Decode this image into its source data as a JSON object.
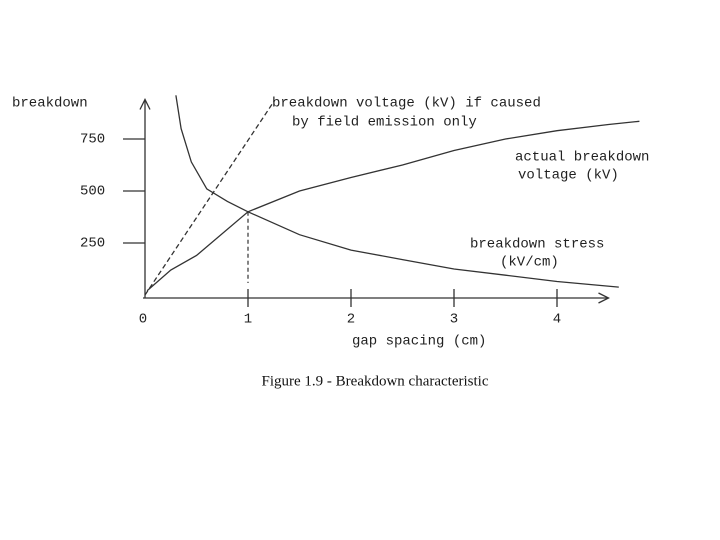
{
  "chart_data": {
    "type": "line",
    "y_label": "breakdown",
    "x_label": "gap spacing (cm)",
    "caption": "Figure 1.9 - Breakdown characteristic",
    "xlim": [
      0,
      4.5
    ],
    "ylim": [
      0,
      940
    ],
    "xticks": [
      0,
      1,
      2,
      3,
      4
    ],
    "yticks": [
      250,
      500,
      750
    ],
    "series": [
      {
        "label_lines": [
          "breakdown voltage (kV) if caused",
          "by field emission only"
        ],
        "color": "#333333",
        "dashed": true,
        "x": [
          0,
          1.26
        ],
        "values": [
          0,
          937
        ]
      },
      {
        "label_lines": [
          "actual breakdown",
          "voltage (kV)"
        ],
        "color": "#333333",
        "dashed": false,
        "x": [
          0.02,
          0.25,
          0.5,
          1,
          1.5,
          2,
          2.5,
          3,
          3.5,
          4,
          4.5,
          4.8
        ],
        "values": [
          20,
          120,
          190,
          400,
          500,
          565,
          625,
          695,
          750,
          790,
          820,
          835
        ]
      },
      {
        "label_lines": [
          "breakdown stress",
          "(kV/cm)"
        ],
        "color": "#333333",
        "dashed": false,
        "x": [
          0.3,
          0.35,
          0.45,
          0.6,
          0.8,
          1,
          1.5,
          2,
          2.5,
          3,
          3.5,
          4,
          4.6
        ],
        "values": [
          960,
          800,
          640,
          510,
          450,
          400,
          290,
          216,
          170,
          125,
          95,
          65,
          38
        ]
      }
    ]
  }
}
